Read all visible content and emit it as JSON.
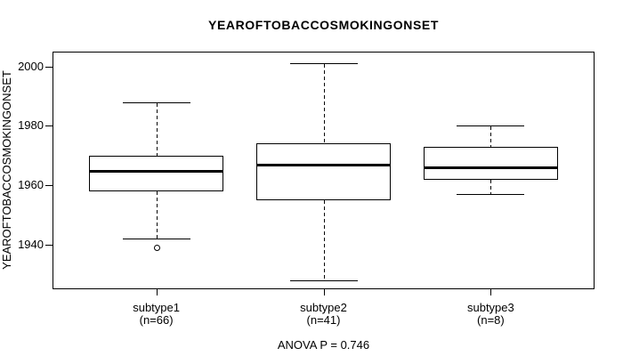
{
  "chart_data": {
    "type": "boxplot",
    "title": "YEAROFTOBACCOSMOKINGONSET",
    "ylabel": "YEAROFTOBACCOSMOKINGONSET",
    "xlabel": "",
    "annotation": "ANOVA P = 0.746",
    "ylim": [
      1925,
      2005
    ],
    "yticks": [
      1940,
      1960,
      1980,
      2000
    ],
    "grid": false,
    "legend": null,
    "colors": {
      "line": "#000000",
      "background": "#ffffff"
    },
    "groups": [
      {
        "label": "subtype1",
        "sublabel": "(n=66)",
        "n": 66,
        "whisker_low": 1942,
        "q1": 1958,
        "median": 1965,
        "q3": 1970,
        "whisker_high": 1988,
        "outliers": [
          1939
        ]
      },
      {
        "label": "subtype2",
        "sublabel": "(n=41)",
        "n": 41,
        "whisker_low": 1928,
        "q1": 1955,
        "median": 1967,
        "q3": 1974,
        "whisker_high": 2001,
        "outliers": []
      },
      {
        "label": "subtype3",
        "sublabel": "(n=8)",
        "n": 8,
        "whisker_low": 1957,
        "q1": 1962,
        "median": 1966,
        "q3": 1973,
        "whisker_high": 1980,
        "outliers": []
      }
    ]
  }
}
